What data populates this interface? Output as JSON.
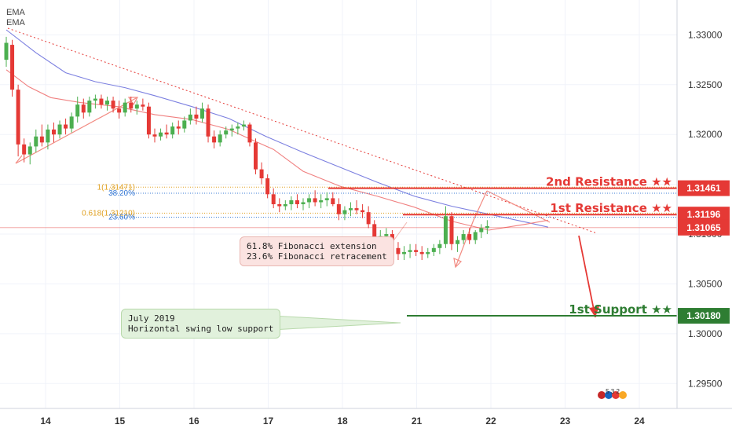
{
  "legend": {
    "ema_1": "EMA",
    "ema_2": "EMA"
  },
  "badge": {
    "text": "5 3 2"
  },
  "chart_data": {
    "type": "candlestick",
    "x_tick_labels": [
      "14",
      "15",
      "16",
      "17",
      "18",
      "21",
      "22",
      "23",
      "24"
    ],
    "y_ticks": [
      1.295,
      1.3,
      1.305,
      1.31,
      1.315,
      1.32,
      1.325,
      1.33
    ],
    "y_tick_labels": [
      "1.29500",
      "1.30000",
      "1.30500",
      "1.31000",
      "1.31500",
      "1.32000",
      "1.32500",
      "1.33000"
    ],
    "ylim": [
      1.2925,
      1.3335
    ],
    "levels": [
      {
        "name": "2nd Resistance ★★",
        "price": 1.31461,
        "price_label": "1.31461",
        "color": "#e53935"
      },
      {
        "name": "1st Resistance ★★",
        "price": 1.31196,
        "price_label": "1.31196",
        "color": "#e53935"
      },
      {
        "name": "1st Support ★★",
        "price": 1.3018,
        "price_label": "1.30180",
        "color": "#2e7d32"
      }
    ],
    "current_price": {
      "price": 1.31065,
      "price_label": "1.31065",
      "color": "#e53935"
    },
    "fibonacci": [
      {
        "label": "1(1.31471)",
        "price": 1.31471,
        "color": "#e0a020"
      },
      {
        "label": "38.20%",
        "price": 1.3141,
        "color": "#3a7bd5"
      },
      {
        "label": "0.618(1.31210)",
        "price": 1.3121,
        "color": "#e0a020"
      },
      {
        "label": "23.60%",
        "price": 1.3117,
        "color": "#3a7bd5"
      }
    ],
    "annotations": [
      {
        "text_line1": "61.8% Fibonacci extension",
        "text_line2": "23.6% Fibonacci retracement"
      },
      {
        "text_line1": "July 2019",
        "text_line2": "Horizontal swing low support"
      }
    ],
    "ema_fast": [
      [
        0,
        1.3265
      ],
      [
        0.3,
        1.3248
      ],
      [
        0.6,
        1.3237
      ],
      [
        1.0,
        1.3232
      ],
      [
        1.5,
        1.3228
      ],
      [
        2.0,
        1.322
      ],
      [
        2.5,
        1.3215
      ],
      [
        3.0,
        1.3205
      ],
      [
        3.3,
        1.3195
      ],
      [
        3.6,
        1.3185
      ],
      [
        4.0,
        1.3163
      ],
      [
        4.5,
        1.3148
      ],
      [
        5.0,
        1.3138
      ],
      [
        5.5,
        1.3127
      ],
      [
        6.0,
        1.3113
      ],
      [
        6.5,
        1.3104
      ],
      [
        7.0,
        1.311
      ],
      [
        7.3,
        1.3114
      ]
    ],
    "ema_slow": [
      [
        0,
        1.3305
      ],
      [
        0.4,
        1.3282
      ],
      [
        0.8,
        1.3262
      ],
      [
        1.2,
        1.3253
      ],
      [
        1.6,
        1.3247
      ],
      [
        2.0,
        1.3239
      ],
      [
        2.5,
        1.3228
      ],
      [
        3.0,
        1.3216
      ],
      [
        3.5,
        1.3198
      ],
      [
        4.0,
        1.3182
      ],
      [
        4.5,
        1.3167
      ],
      [
        5.0,
        1.3152
      ],
      [
        5.5,
        1.3138
      ],
      [
        6.0,
        1.3128
      ],
      [
        6.5,
        1.312
      ],
      [
        7.0,
        1.3112
      ],
      [
        7.3,
        1.3107
      ]
    ],
    "candles": [
      [
        0.0,
        1.3275,
        1.3298,
        1.3268,
        1.3292
      ],
      [
        0.08,
        1.329,
        1.3295,
        1.3238,
        1.3245
      ],
      [
        0.16,
        1.3245,
        1.325,
        1.3178,
        1.319
      ],
      [
        0.24,
        1.319,
        1.3196,
        1.3172,
        1.318
      ],
      [
        0.32,
        1.318,
        1.3192,
        1.317,
        1.3188
      ],
      [
        0.4,
        1.3188,
        1.3205,
        1.3182,
        1.3198
      ],
      [
        0.48,
        1.3198,
        1.321,
        1.3188,
        1.3192
      ],
      [
        0.56,
        1.3192,
        1.321,
        1.3185,
        1.3205
      ],
      [
        0.64,
        1.3205,
        1.3212,
        1.3192,
        1.32
      ],
      [
        0.72,
        1.32,
        1.3214,
        1.3196,
        1.321
      ],
      [
        0.8,
        1.321,
        1.3216,
        1.32,
        1.3206
      ],
      [
        0.88,
        1.3206,
        1.3222,
        1.3202,
        1.3218
      ],
      [
        0.96,
        1.3218,
        1.3238,
        1.3212,
        1.323
      ],
      [
        1.04,
        1.323,
        1.3236,
        1.3216,
        1.3222
      ],
      [
        1.12,
        1.3222,
        1.3238,
        1.3218,
        1.3234
      ],
      [
        1.2,
        1.3234,
        1.324,
        1.3226,
        1.3236
      ],
      [
        1.28,
        1.3236,
        1.324,
        1.3226,
        1.323
      ],
      [
        1.36,
        1.323,
        1.3238,
        1.3224,
        1.3234
      ],
      [
        1.44,
        1.3234,
        1.3238,
        1.3222,
        1.3226
      ],
      [
        1.52,
        1.3226,
        1.3234,
        1.3216,
        1.3222
      ],
      [
        1.6,
        1.3222,
        1.3236,
        1.3218,
        1.3232
      ],
      [
        1.68,
        1.3232,
        1.3238,
        1.3222,
        1.3226
      ],
      [
        1.76,
        1.3226,
        1.3234,
        1.322,
        1.323
      ],
      [
        1.84,
        1.323,
        1.3236,
        1.3224,
        1.3228
      ],
      [
        1.92,
        1.3228,
        1.3232,
        1.3196,
        1.32
      ],
      [
        2.0,
        1.32,
        1.3206,
        1.3192,
        1.3198
      ],
      [
        2.08,
        1.3198,
        1.3206,
        1.3194,
        1.3202
      ],
      [
        2.16,
        1.3202,
        1.321,
        1.3196,
        1.32
      ],
      [
        2.24,
        1.32,
        1.3212,
        1.3196,
        1.3208
      ],
      [
        2.32,
        1.3208,
        1.3214,
        1.32,
        1.3206
      ],
      [
        2.4,
        1.3206,
        1.3218,
        1.3202,
        1.3214
      ],
      [
        2.48,
        1.3214,
        1.3226,
        1.321,
        1.322
      ],
      [
        2.56,
        1.322,
        1.3228,
        1.321,
        1.3216
      ],
      [
        2.64,
        1.3216,
        1.3232,
        1.3212,
        1.3226
      ],
      [
        2.72,
        1.3226,
        1.323,
        1.3192,
        1.3198
      ],
      [
        2.8,
        1.3198,
        1.3204,
        1.3186,
        1.3192
      ],
      [
        2.88,
        1.3192,
        1.3204,
        1.3188,
        1.32
      ],
      [
        2.96,
        1.32,
        1.3208,
        1.3196,
        1.3204
      ],
      [
        3.04,
        1.3204,
        1.321,
        1.3198,
        1.3206
      ],
      [
        3.12,
        1.3206,
        1.3212,
        1.32,
        1.3208
      ],
      [
        3.2,
        1.3208,
        1.3214,
        1.3204,
        1.321
      ],
      [
        3.28,
        1.321,
        1.3212,
        1.3188,
        1.3192
      ],
      [
        3.36,
        1.3192,
        1.3196,
        1.316,
        1.3165
      ],
      [
        3.44,
        1.3165,
        1.3172,
        1.315,
        1.3156
      ],
      [
        3.52,
        1.3156,
        1.316,
        1.3136,
        1.314
      ],
      [
        3.6,
        1.314,
        1.3146,
        1.3126,
        1.313
      ],
      [
        3.68,
        1.313,
        1.3136,
        1.3122,
        1.3128
      ],
      [
        3.76,
        1.3128,
        1.3134,
        1.3124,
        1.313
      ],
      [
        3.84,
        1.313,
        1.3138,
        1.3124,
        1.3134
      ],
      [
        3.92,
        1.3134,
        1.314,
        1.3126,
        1.313
      ],
      [
        4.0,
        1.313,
        1.3136,
        1.3124,
        1.3132
      ],
      [
        4.08,
        1.3132,
        1.314,
        1.3126,
        1.3136
      ],
      [
        4.16,
        1.3136,
        1.3144,
        1.3128,
        1.3132
      ],
      [
        4.24,
        1.3132,
        1.314,
        1.3126,
        1.3134
      ],
      [
        4.32,
        1.3134,
        1.3142,
        1.3128,
        1.3136
      ],
      [
        4.4,
        1.3136,
        1.3142,
        1.3128,
        1.313
      ],
      [
        4.48,
        1.313,
        1.3136,
        1.3114,
        1.312
      ],
      [
        4.56,
        1.312,
        1.3128,
        1.3114,
        1.3124
      ],
      [
        4.64,
        1.3124,
        1.3132,
        1.3118,
        1.3126
      ],
      [
        4.72,
        1.3126,
        1.3134,
        1.312,
        1.3124
      ],
      [
        4.8,
        1.3124,
        1.313,
        1.3116,
        1.3122
      ],
      [
        4.88,
        1.3122,
        1.3128,
        1.3106,
        1.311
      ],
      [
        4.96,
        1.311,
        1.3114,
        1.309,
        1.3096
      ],
      [
        5.04,
        1.3096,
        1.3104,
        1.309,
        1.3098
      ],
      [
        5.12,
        1.3098,
        1.3106,
        1.3092,
        1.31
      ],
      [
        5.2,
        1.31,
        1.3104,
        1.3082,
        1.3086
      ],
      [
        5.28,
        1.3086,
        1.3092,
        1.3074,
        1.308
      ],
      [
        5.36,
        1.308,
        1.3088,
        1.3074,
        1.3082
      ],
      [
        5.44,
        1.3082,
        1.309,
        1.3076,
        1.3084
      ],
      [
        5.52,
        1.3084,
        1.309,
        1.3078,
        1.3082
      ],
      [
        5.6,
        1.3082,
        1.3088,
        1.3074,
        1.308
      ],
      [
        5.68,
        1.308,
        1.3086,
        1.3076,
        1.3082
      ],
      [
        5.76,
        1.3082,
        1.309,
        1.3078,
        1.3086
      ],
      [
        5.84,
        1.3086,
        1.3094,
        1.308,
        1.309
      ],
      [
        5.92,
        1.309,
        1.3128,
        1.3086,
        1.3118
      ],
      [
        6.0,
        1.3118,
        1.3122,
        1.3084,
        1.309
      ],
      [
        6.08,
        1.309,
        1.3098,
        1.3082,
        1.3094
      ],
      [
        6.16,
        1.3094,
        1.3104,
        1.309,
        1.31
      ],
      [
        6.24,
        1.31,
        1.3106,
        1.309,
        1.3094
      ],
      [
        6.32,
        1.3094,
        1.3104,
        1.309,
        1.3102
      ],
      [
        6.4,
        1.3102,
        1.311,
        1.3096,
        1.3106
      ],
      [
        6.48,
        1.3106,
        1.3114,
        1.31,
        1.3108
      ]
    ]
  }
}
